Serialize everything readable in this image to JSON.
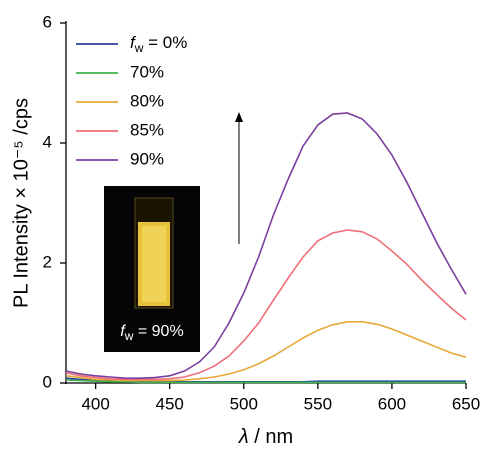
{
  "chart_data": {
    "type": "line",
    "x": [
      380,
      390,
      400,
      410,
      420,
      430,
      440,
      450,
      460,
      470,
      480,
      490,
      500,
      510,
      520,
      530,
      540,
      550,
      560,
      570,
      580,
      590,
      600,
      610,
      620,
      630,
      640,
      650
    ],
    "series": [
      {
        "name": "fw = 0%",
        "color": "#2b3f9e",
        "values": [
          0.08,
          0.06,
          0.04,
          0.03,
          0.02,
          0.02,
          0.02,
          0.02,
          0.02,
          0.02,
          0.02,
          0.02,
          0.02,
          0.02,
          0.02,
          0.02,
          0.02,
          0.03,
          0.03,
          0.03,
          0.03,
          0.03,
          0.03,
          0.03,
          0.03,
          0.03,
          0.03,
          0.03
        ]
      },
      {
        "name": "70%",
        "color": "#3db34a",
        "values": [
          0.05,
          0.04,
          0.03,
          0.02,
          0.02,
          0.01,
          0.01,
          0.01,
          0.01,
          0.01,
          0.01,
          0.01,
          0.01,
          0.01,
          0.01,
          0.01,
          0.01,
          0.01,
          0.01,
          0.01,
          0.01,
          0.01,
          0.01,
          0.01,
          0.01,
          0.01,
          0.01,
          0.01
        ]
      },
      {
        "name": "80%",
        "color": "#e8a838",
        "values": [
          0.12,
          0.09,
          0.06,
          0.05,
          0.04,
          0.04,
          0.04,
          0.04,
          0.05,
          0.07,
          0.1,
          0.15,
          0.22,
          0.32,
          0.45,
          0.6,
          0.75,
          0.88,
          0.97,
          1.02,
          1.02,
          0.98,
          0.9,
          0.8,
          0.7,
          0.6,
          0.5,
          0.43
        ]
      },
      {
        "name": "85%",
        "color": "#ef6f78",
        "values": [
          0.17,
          0.12,
          0.09,
          0.07,
          0.06,
          0.06,
          0.06,
          0.07,
          0.1,
          0.17,
          0.28,
          0.45,
          0.7,
          1.0,
          1.38,
          1.75,
          2.1,
          2.37,
          2.5,
          2.55,
          2.52,
          2.4,
          2.2,
          1.98,
          1.72,
          1.48,
          1.25,
          1.05
        ]
      },
      {
        "name": "90%",
        "color": "#7b3fa0",
        "values": [
          0.2,
          0.15,
          0.12,
          0.1,
          0.08,
          0.08,
          0.09,
          0.12,
          0.2,
          0.35,
          0.6,
          1.0,
          1.5,
          2.1,
          2.8,
          3.4,
          3.95,
          4.3,
          4.48,
          4.5,
          4.4,
          4.15,
          3.8,
          3.35,
          2.85,
          2.35,
          1.9,
          1.48
        ]
      }
    ],
    "xlim": [
      380,
      650
    ],
    "xticks": [
      400,
      450,
      500,
      550,
      600,
      650
    ],
    "ylim": [
      0,
      6
    ],
    "yticks": [
      0,
      2,
      4,
      6
    ],
    "xlabel": "λ / nm",
    "ylabel": "PL Intensity × 10⁻⁵ /cps",
    "inset_label": "fw = 90%"
  }
}
